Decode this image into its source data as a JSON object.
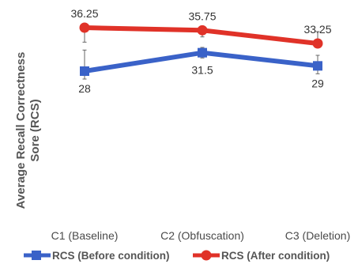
{
  "chart_data": {
    "type": "line",
    "title": "",
    "ylabel": "Average Recall Correctness Sore (RCS)",
    "xlabel": "",
    "categories": [
      "C1 (Baseline)",
      "C2 (Obfuscation)",
      "C3 (Deletion)"
    ],
    "ylim": [
      0,
      37
    ],
    "grid": false,
    "legend_position": "bottom",
    "series": [
      {
        "name": "RCS (Before condition)",
        "color": "#3a62c8",
        "marker": "square",
        "values": [
          28,
          31.5,
          29
        ],
        "labels": [
          "28",
          "31.5",
          "29"
        ],
        "error_upper": [
          32,
          32.5,
          31
        ],
        "error_lower": [
          26.5,
          30.5,
          27.5
        ]
      },
      {
        "name": "RCS (After condition)",
        "color": "#e03228",
        "marker": "circle",
        "values": [
          36.25,
          35.75,
          33.25
        ],
        "labels": [
          "36.25",
          "35.75",
          "33.25"
        ],
        "error_upper": [
          36.6,
          36.2,
          35.5
        ],
        "error_lower": [
          33.5,
          34.5,
          32.5
        ]
      }
    ]
  }
}
